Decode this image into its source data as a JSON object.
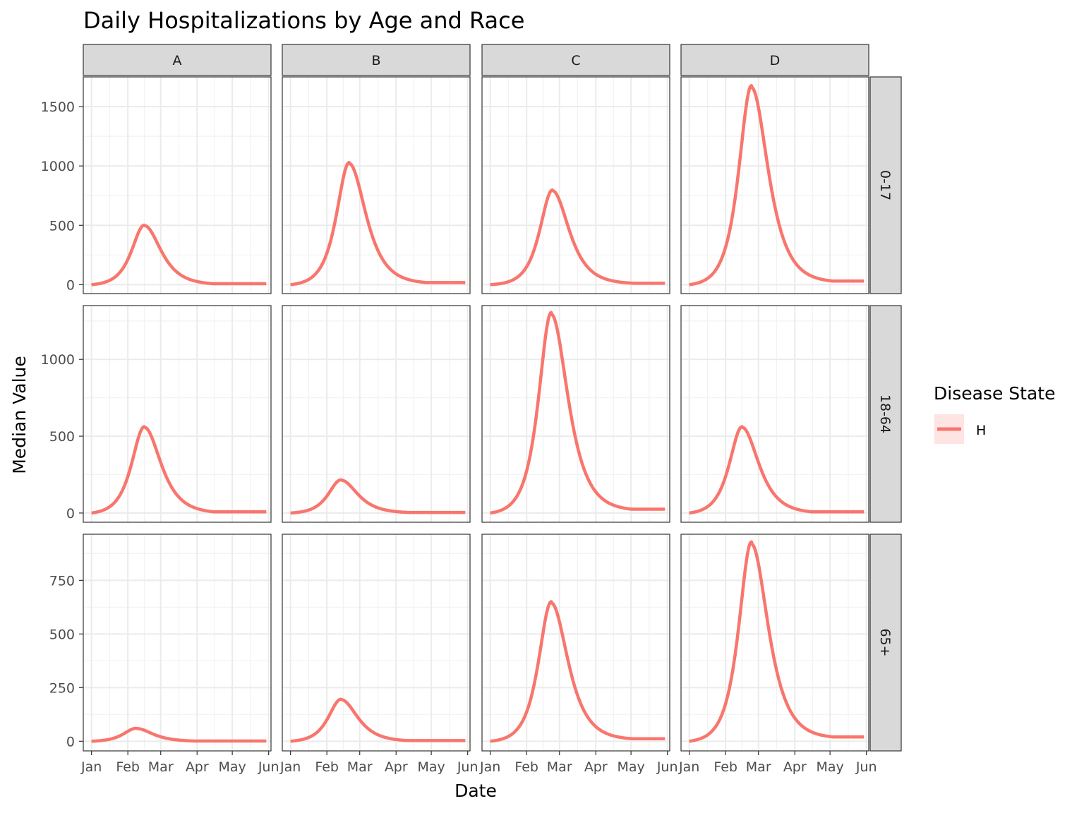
{
  "chart_data": {
    "type": "line",
    "title": "Daily Hospitalizations by Age and Race",
    "xlabel": "Date",
    "ylabel": "Median Value",
    "x_tick_labels": [
      "Jan",
      "Feb",
      "Mar",
      "Apr",
      "May",
      "Jun"
    ],
    "x_ticks": [
      "2021-01-01",
      "2021-02-01",
      "2021-03-01",
      "2021-04-01",
      "2021-05-01",
      "2021-06-01"
    ],
    "xlim": [
      "2020-12-25",
      "2021-06-03"
    ],
    "facet_columns": [
      "A",
      "B",
      "C",
      "D"
    ],
    "facet_rows": [
      "0-17",
      "18-64",
      "65+"
    ],
    "row_axes": [
      {
        "ylim": [
          -75,
          1750
        ],
        "ticks": [
          0,
          500,
          1000,
          1500
        ],
        "tick_labels": [
          "0",
          "500",
          "1000",
          "1500"
        ]
      },
      {
        "ylim": [
          -60,
          1350
        ],
        "ticks": [
          0,
          500,
          1000
        ],
        "tick_labels": [
          "0",
          "500",
          "1000"
        ]
      },
      {
        "ylim": [
          -45,
          965
        ],
        "ticks": [
          0,
          250,
          500,
          750
        ],
        "tick_labels": [
          "0",
          "250",
          "500",
          "750"
        ]
      }
    ],
    "grid": true,
    "legend": {
      "title": "Disease State",
      "position": "right",
      "entries": [
        "H"
      ]
    },
    "series_color": "#F8766D",
    "series_name": "H",
    "series_start": "2021-01-01",
    "series_end": "2021-05-30",
    "panels": [
      {
        "row": "0-17",
        "col": "A",
        "peak_date": "2021-02-15",
        "peak_value": 500,
        "start_value": 0,
        "end_value": 8
      },
      {
        "row": "0-17",
        "col": "B",
        "peak_date": "2021-02-20",
        "peak_value": 1025,
        "start_value": 0,
        "end_value": 18
      },
      {
        "row": "0-17",
        "col": "C",
        "peak_date": "2021-02-23",
        "peak_value": 795,
        "start_value": 0,
        "end_value": 12
      },
      {
        "row": "0-17",
        "col": "D",
        "peak_date": "2021-02-23",
        "peak_value": 1670,
        "start_value": 0,
        "end_value": 30
      },
      {
        "row": "18-64",
        "col": "A",
        "peak_date": "2021-02-15",
        "peak_value": 560,
        "start_value": 0,
        "end_value": 8
      },
      {
        "row": "18-64",
        "col": "B",
        "peak_date": "2021-02-13",
        "peak_value": 215,
        "start_value": 0,
        "end_value": 4
      },
      {
        "row": "18-64",
        "col": "C",
        "peak_date": "2021-02-22",
        "peak_value": 1300,
        "start_value": 0,
        "end_value": 25
      },
      {
        "row": "18-64",
        "col": "D",
        "peak_date": "2021-02-15",
        "peak_value": 560,
        "start_value": 0,
        "end_value": 8
      },
      {
        "row": "65+",
        "col": "A",
        "peak_date": "2021-02-08",
        "peak_value": 60,
        "start_value": 0,
        "end_value": 1
      },
      {
        "row": "65+",
        "col": "B",
        "peak_date": "2021-02-13",
        "peak_value": 195,
        "start_value": 0,
        "end_value": 3
      },
      {
        "row": "65+",
        "col": "C",
        "peak_date": "2021-02-22",
        "peak_value": 648,
        "start_value": 0,
        "end_value": 12
      },
      {
        "row": "65+",
        "col": "D",
        "peak_date": "2021-02-23",
        "peak_value": 925,
        "start_value": 0,
        "end_value": 20
      }
    ]
  }
}
